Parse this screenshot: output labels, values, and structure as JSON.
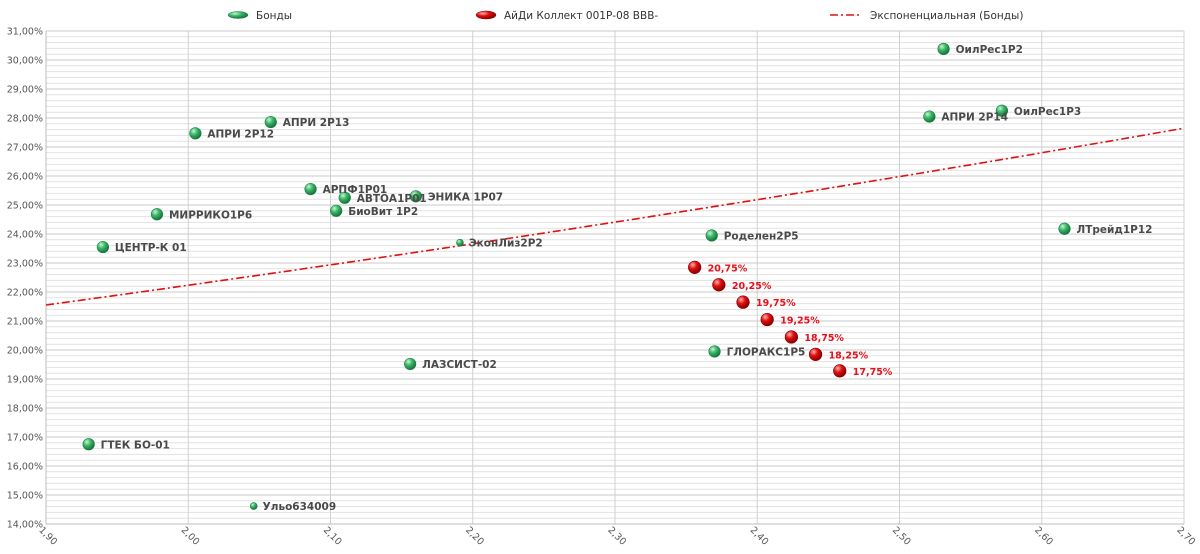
{
  "chart_data": {
    "type": "scatter",
    "xlim": [
      1.9,
      2.7
    ],
    "ylim": [
      14,
      31
    ],
    "x_ticks": [
      "1,90",
      "2,00",
      "2,10",
      "2,20",
      "2,30",
      "2,40",
      "2,50",
      "2,60",
      "2,70"
    ],
    "y_ticks": [
      "14,00%",
      "15,00%",
      "16,00%",
      "17,00%",
      "18,00%",
      "19,00%",
      "20,00%",
      "21,00%",
      "22,00%",
      "23,00%",
      "24,00%",
      "25,00%",
      "26,00%",
      "27,00%",
      "28,00%",
      "29,00%",
      "30,00%",
      "31,00%"
    ],
    "grid": true,
    "legend_position": "top",
    "legend": [
      {
        "name": "Бонды",
        "color": "#2ea65a"
      },
      {
        "name": "АйДи Коллект 001Р-08 BBB-",
        "color": "#e01010"
      },
      {
        "name": "Экспоненциальная (Бонды)",
        "color": "#e01010"
      }
    ],
    "series": [
      {
        "name": "Бонды",
        "color": "#2ea65a",
        "points": [
          {
            "x": 1.93,
            "y": 16.75,
            "label": "ГТЕК БО-01",
            "size": "large"
          },
          {
            "x": 1.94,
            "y": 23.55,
            "label": "ЦЕНТР-К 01",
            "size": "large"
          },
          {
            "x": 1.978,
            "y": 24.68,
            "label": "МИРРИКО1Р6",
            "size": "large"
          },
          {
            "x": 2.005,
            "y": 27.47,
            "label": "АПРИ 2Р12",
            "size": "large"
          },
          {
            "x": 2.046,
            "y": 14.62,
            "label": "Ульо634009",
            "size": "small"
          },
          {
            "x": 2.058,
            "y": 27.86,
            "label": "АПРИ 2Р13",
            "size": "large"
          },
          {
            "x": 2.086,
            "y": 25.55,
            "label": "АРПФ1Р01",
            "size": "large"
          },
          {
            "x": 2.11,
            "y": 25.25,
            "label": "АВТОА1Р01",
            "size": "large"
          },
          {
            "x": 2.104,
            "y": 24.8,
            "label": "БиоВит 1Р2",
            "size": "large"
          },
          {
            "x": 2.156,
            "y": 19.52,
            "label": "ЛАЗСИСТ-02",
            "size": "large"
          },
          {
            "x": 2.16,
            "y": 25.3,
            "label": "ЭНИКА 1Р07",
            "size": "large"
          },
          {
            "x": 2.191,
            "y": 23.7,
            "label": "ЭконЛиз2Р2",
            "size": "small"
          },
          {
            "x": 2.368,
            "y": 23.95,
            "label": "Роделен2Р5",
            "size": "large"
          },
          {
            "x": 2.37,
            "y": 19.95,
            "label": "ГЛОРАКС1Р5",
            "size": "large"
          },
          {
            "x": 2.521,
            "y": 28.05,
            "label": "АПРИ 2Р14",
            "size": "large"
          },
          {
            "x": 2.531,
            "y": 30.38,
            "label": "ОилРес1Р2",
            "size": "large"
          },
          {
            "x": 2.572,
            "y": 28.25,
            "label": "ОилРес1Р3",
            "size": "large"
          },
          {
            "x": 2.616,
            "y": 24.18,
            "label": "ЛТрейд1Р12",
            "size": "large"
          }
        ]
      },
      {
        "name": "АйДи Коллект 001Р-08 BBB-",
        "color": "#e01010",
        "points": [
          {
            "x": 2.356,
            "y": 22.85,
            "label": "20,75%"
          },
          {
            "x": 2.373,
            "y": 22.25,
            "label": "20,25%"
          },
          {
            "x": 2.39,
            "y": 21.65,
            "label": "19,75%"
          },
          {
            "x": 2.407,
            "y": 21.05,
            "label": "19,25%"
          },
          {
            "x": 2.424,
            "y": 20.45,
            "label": "18,75%"
          },
          {
            "x": 2.441,
            "y": 19.85,
            "label": "18,25%"
          },
          {
            "x": 2.458,
            "y": 19.28,
            "label": "17,75%"
          }
        ]
      }
    ],
    "trendline": {
      "name": "Экспоненциальная (Бонды)",
      "type": "exponential",
      "color": "#e01010",
      "style": "dash-dot",
      "start": {
        "x": 1.9,
        "y": 21.55
      },
      "end": {
        "x": 2.7,
        "y": 27.65
      }
    }
  }
}
